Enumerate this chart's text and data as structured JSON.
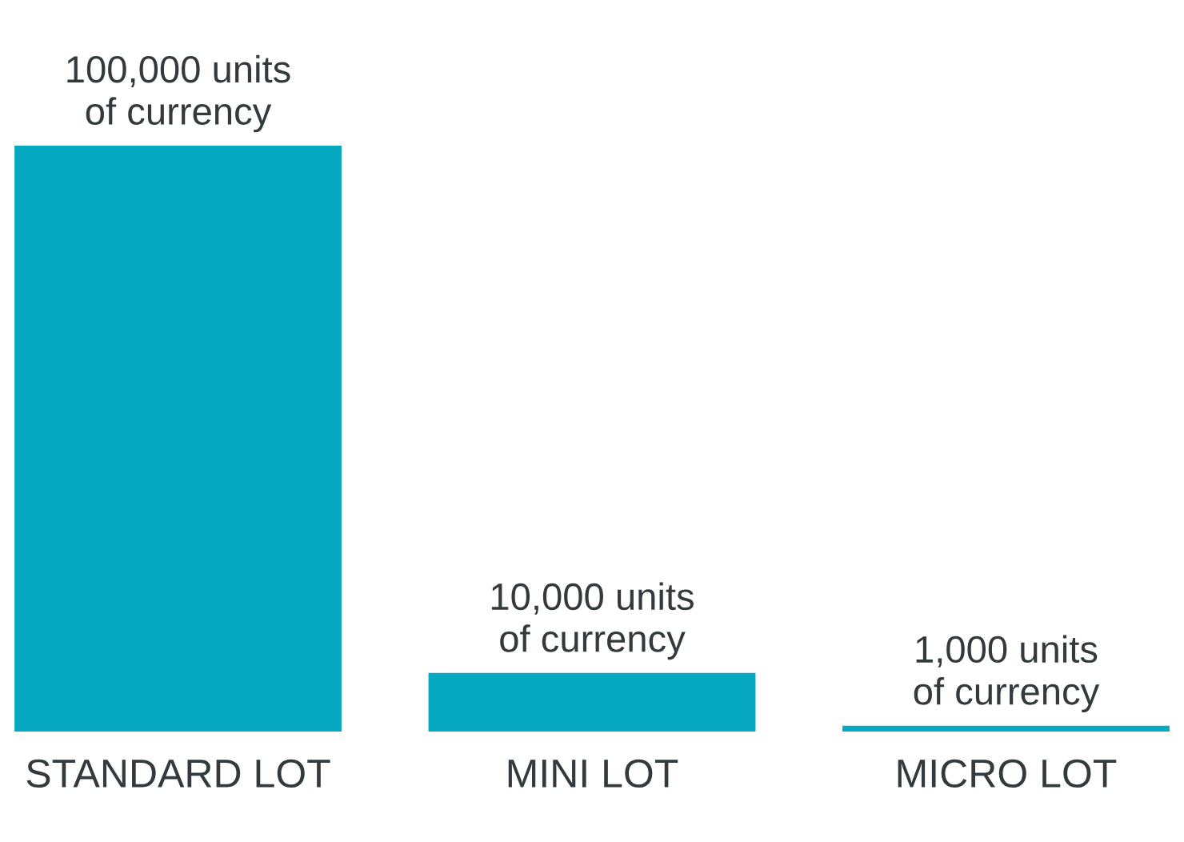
{
  "chart_data": {
    "type": "bar",
    "categories": [
      "STANDARD LOT",
      "MINI LOT",
      "MICRO LOT"
    ],
    "values": [
      100000,
      10000,
      1000
    ],
    "value_labels": [
      "100,000 units\nof currency",
      "10,000 units\nof currency",
      "1,000 units\nof currency"
    ],
    "color": "#06a9c1",
    "grid": false,
    "legend": false
  }
}
